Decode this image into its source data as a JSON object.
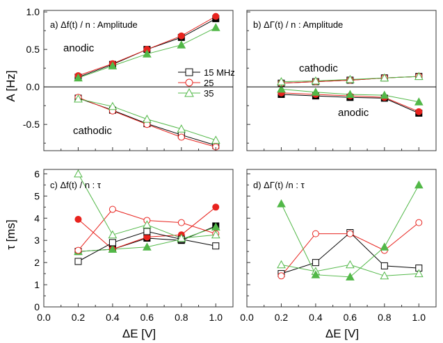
{
  "colors": {
    "s15": "#000000",
    "s25": "#e8231e",
    "s35": "#52b848",
    "frame": "#333333",
    "zero_line": "#000000"
  },
  "axes": {
    "xlabel": "ΔE [V]",
    "ylabel_top": "A [Hz]",
    "ylabel_bottom": "τ  [ms]",
    "x_ticks": [
      "0.0",
      "0.2",
      "0.4",
      "0.6",
      "0.8",
      "1.0"
    ],
    "y_ticks_top": [
      "-0.5",
      "0.0",
      "0.5",
      "1.0"
    ],
    "y_ticks_bottom": [
      "0",
      "1",
      "2",
      "3",
      "4",
      "5",
      "6"
    ]
  },
  "legend": [
    {
      "name": "15 MHz",
      "color": "#000000"
    },
    {
      "name": "25",
      "color": "#e8231e"
    },
    {
      "name": "35",
      "color": "#52b848"
    }
  ],
  "chart_data": [
    {
      "type": "line",
      "panel": "a",
      "title": "a) Δf(t) / n  : Amplitude",
      "xlim": [
        0,
        1.1
      ],
      "ylim": [
        -0.85,
        1.02
      ],
      "xlabel": "",
      "ylabel": "A [Hz]",
      "zero_line": true,
      "annotations": [
        "anodic",
        "cathodic"
      ],
      "legend_position": "center-right",
      "series": [
        {
          "name": "15 MHz",
          "branch": "anodic",
          "filled": true,
          "x": [
            0.2,
            0.4,
            0.6,
            0.8,
            1.0
          ],
          "y": [
            0.13,
            0.3,
            0.5,
            0.66,
            0.91
          ]
        },
        {
          "name": "25",
          "branch": "anodic",
          "filled": true,
          "x": [
            0.2,
            0.4,
            0.6,
            0.8,
            1.0
          ],
          "y": [
            0.15,
            0.31,
            0.5,
            0.68,
            0.94
          ]
        },
        {
          "name": "35",
          "branch": "anodic",
          "filled": true,
          "x": [
            0.2,
            0.4,
            0.6,
            0.8,
            1.0
          ],
          "y": [
            0.12,
            0.28,
            0.44,
            0.56,
            0.79
          ]
        },
        {
          "name": "15 MHz",
          "branch": "cathodic",
          "filled": false,
          "x": [
            0.2,
            0.4,
            0.6,
            0.8,
            1.0
          ],
          "y": [
            -0.15,
            -0.31,
            -0.49,
            -0.64,
            -0.78
          ]
        },
        {
          "name": "25",
          "branch": "cathodic",
          "filled": false,
          "x": [
            0.2,
            0.4,
            0.6,
            0.8,
            1.0
          ],
          "y": [
            -0.14,
            -0.32,
            -0.5,
            -0.67,
            -0.8
          ]
        },
        {
          "name": "35",
          "branch": "cathodic",
          "filled": false,
          "x": [
            0.2,
            0.4,
            0.6,
            0.8,
            1.0
          ],
          "y": [
            -0.16,
            -0.26,
            -0.43,
            -0.56,
            -0.71
          ]
        }
      ]
    },
    {
      "type": "line",
      "panel": "b",
      "title": "b) ΔΓ(t) / n : Amplitude",
      "xlim": [
        0,
        1.1
      ],
      "ylim": [
        -0.85,
        1.02
      ],
      "xlabel": "",
      "ylabel": "",
      "zero_line": true,
      "annotations": [
        "cathodic",
        "anodic"
      ],
      "series": [
        {
          "name": "15 MHz",
          "branch": "cathodic",
          "filled": false,
          "x": [
            0.2,
            0.4,
            0.6,
            0.8,
            1.0
          ],
          "y": [
            0.05,
            0.07,
            0.09,
            0.12,
            0.14
          ]
        },
        {
          "name": "25",
          "branch": "cathodic",
          "filled": false,
          "x": [
            0.2,
            0.4,
            0.6,
            0.8,
            1.0
          ],
          "y": [
            0.05,
            0.07,
            0.09,
            0.12,
            0.14
          ]
        },
        {
          "name": "35",
          "branch": "cathodic",
          "filled": false,
          "x": [
            0.2,
            0.4,
            0.6,
            0.8,
            1.0
          ],
          "y": [
            0.07,
            0.08,
            0.1,
            0.12,
            0.14
          ]
        },
        {
          "name": "15 MHz",
          "branch": "anodic",
          "filled": true,
          "x": [
            0.2,
            0.4,
            0.6,
            0.8,
            1.0
          ],
          "y": [
            -0.1,
            -0.12,
            -0.14,
            -0.15,
            -0.35
          ]
        },
        {
          "name": "25",
          "branch": "anodic",
          "filled": true,
          "x": [
            0.2,
            0.4,
            0.6,
            0.8,
            1.0
          ],
          "y": [
            -0.08,
            -0.1,
            -0.12,
            -0.14,
            -0.33
          ]
        },
        {
          "name": "35",
          "branch": "anodic",
          "filled": true,
          "x": [
            0.2,
            0.4,
            0.6,
            0.8,
            1.0
          ],
          "y": [
            -0.03,
            -0.07,
            -0.1,
            -0.11,
            -0.2
          ]
        }
      ]
    },
    {
      "type": "line",
      "panel": "c",
      "title": "c) Δf(t) / n  : τ",
      "xlim": [
        0,
        1.1
      ],
      "ylim": [
        0,
        6.2
      ],
      "xlabel": "ΔE [V]",
      "ylabel": "τ  [ms]",
      "series": [
        {
          "name": "15 MHz",
          "branch": "anodic",
          "filled": true,
          "x": [
            0.2,
            0.4,
            0.6,
            0.8,
            1.0
          ],
          "y": [
            2.5,
            2.6,
            3.1,
            3.0,
            3.65
          ]
        },
        {
          "name": "25",
          "branch": "anodic",
          "filled": true,
          "x": [
            0.2,
            0.4,
            0.6,
            0.8,
            1.0
          ],
          "y": [
            3.95,
            2.6,
            3.15,
            3.25,
            4.5
          ]
        },
        {
          "name": "35",
          "branch": "anodic",
          "filled": true,
          "x": [
            0.2,
            0.4,
            0.6,
            0.8,
            1.0
          ],
          "y": [
            2.5,
            2.6,
            2.7,
            3.05,
            3.6
          ]
        },
        {
          "name": "15 MHz",
          "branch": "cathodic",
          "filled": false,
          "x": [
            0.2,
            0.4,
            0.6,
            0.8,
            1.0
          ],
          "y": [
            2.05,
            2.9,
            3.4,
            3.05,
            2.75
          ]
        },
        {
          "name": "25",
          "branch": "cathodic",
          "filled": false,
          "x": [
            0.2,
            0.4,
            0.6,
            0.8,
            1.0
          ],
          "y": [
            2.55,
            4.4,
            3.9,
            3.8,
            3.3
          ]
        },
        {
          "name": "35",
          "branch": "cathodic",
          "filled": false,
          "x": [
            0.2,
            0.4,
            0.6,
            0.8,
            1.0
          ],
          "y": [
            6.0,
            3.25,
            3.7,
            3.1,
            3.25
          ]
        }
      ]
    },
    {
      "type": "line",
      "panel": "d",
      "title": "d) ΔΓ(t) /n : τ",
      "xlim": [
        0,
        1.1
      ],
      "ylim": [
        0,
        6.2
      ],
      "xlabel": "ΔE [V]",
      "ylabel": "",
      "series": [
        {
          "name": "15 MHz",
          "branch": "cathodic",
          "filled": false,
          "x": [
            0.2,
            0.4,
            0.6,
            0.8,
            1.0
          ],
          "y": [
            1.5,
            2.0,
            3.35,
            1.85,
            1.75
          ]
        },
        {
          "name": "25",
          "branch": "cathodic",
          "filled": false,
          "x": [
            0.2,
            0.4,
            0.6,
            0.8,
            1.0
          ],
          "y": [
            1.4,
            3.3,
            3.3,
            2.55,
            3.8
          ]
        },
        {
          "name": "35",
          "branch": "cathodic",
          "filled": false,
          "x": [
            0.2,
            0.4,
            0.6,
            0.8,
            1.0
          ],
          "y": [
            1.9,
            1.6,
            1.9,
            1.4,
            1.5
          ]
        },
        {
          "name": "35",
          "branch": "anodic",
          "filled": true,
          "x": [
            0.2,
            0.4,
            0.6,
            0.8,
            1.0
          ],
          "y": [
            4.65,
            1.45,
            1.35,
            2.7,
            5.5
          ]
        }
      ]
    }
  ]
}
